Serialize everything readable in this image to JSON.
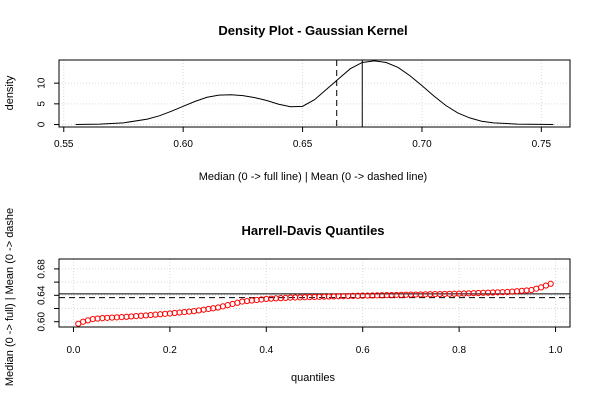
{
  "chart_data": [
    {
      "type": "line",
      "title": "Density Plot - Gaussian Kernel",
      "xlabel": "Median (0 -> full line) | Mean (0 -> dashed line)",
      "ylabel": "density",
      "xlim": [
        0.548,
        0.762
      ],
      "ylim": [
        -0.6,
        15.6
      ],
      "x_ticks": [
        0.55,
        0.6,
        0.65,
        0.7,
        0.75
      ],
      "x_tick_labels": [
        "0.55",
        "0.60",
        "0.65",
        "0.70",
        "0.75"
      ],
      "y_ticks": [
        0,
        5,
        10
      ],
      "y_tick_labels": [
        "0",
        "5",
        "10"
      ],
      "grid": true,
      "series": [
        {
          "x": [
            0.555,
            0.565,
            0.575,
            0.585,
            0.59,
            0.595,
            0.6,
            0.605,
            0.61,
            0.615,
            0.62,
            0.625,
            0.63,
            0.635,
            0.64,
            0.645,
            0.65,
            0.655,
            0.66,
            0.665,
            0.67,
            0.675,
            0.68,
            0.685,
            0.69,
            0.695,
            0.7,
            0.705,
            0.71,
            0.715,
            0.72,
            0.725,
            0.73,
            0.74,
            0.755
          ],
          "y": [
            0.0,
            0.1,
            0.4,
            1.3,
            2.1,
            3.2,
            4.4,
            5.6,
            6.6,
            7.1,
            7.2,
            7.0,
            6.5,
            5.8,
            4.9,
            4.3,
            4.4,
            6.0,
            8.5,
            11.0,
            13.5,
            15.0,
            15.4,
            15.0,
            13.8,
            11.8,
            9.4,
            6.9,
            4.6,
            2.8,
            1.6,
            0.8,
            0.4,
            0.1,
            0.0
          ]
        }
      ],
      "vlines": [
        {
          "label": "median",
          "x": 0.675,
          "style": "solid"
        },
        {
          "label": "mean",
          "x": 0.6643,
          "style": "dashed"
        }
      ]
    },
    {
      "type": "scatter",
      "title": "Harrell-Davis Quantiles",
      "xlabel": "quantiles",
      "ylabel": "Median (0 -> full) | Mean (0 -> dashe",
      "xlim": [
        -0.03,
        1.03
      ],
      "ylim": [
        0.592,
        0.695
      ],
      "x_ticks": [
        0.0,
        0.2,
        0.4,
        0.6,
        0.8,
        1.0
      ],
      "x_tick_labels": [
        "0.0",
        "0.2",
        "0.4",
        "0.6",
        "0.8",
        "1.0"
      ],
      "y_ticks": [
        0.6,
        0.62,
        0.64,
        0.66,
        0.68
      ],
      "y_tick_labels": [
        "0.60",
        "",
        "0.64",
        "",
        "0.68"
      ],
      "grid": true,
      "marker_color": "#ff0000",
      "points": {
        "x_start": 0.01,
        "x_step": 0.01,
        "count": 99,
        "knots_x": [
          0.01,
          0.02,
          0.04,
          0.06,
          0.1,
          0.15,
          0.2,
          0.25,
          0.3,
          0.35,
          0.4,
          0.45,
          0.5,
          0.6,
          0.7,
          0.8,
          0.9,
          0.95,
          0.97,
          0.99
        ],
        "knots_y": [
          0.597,
          0.6,
          0.604,
          0.6055,
          0.607,
          0.6095,
          0.6125,
          0.616,
          0.6215,
          0.6305,
          0.6345,
          0.6365,
          0.6375,
          0.6395,
          0.641,
          0.6425,
          0.645,
          0.648,
          0.652,
          0.6575
        ]
      },
      "hlines": [
        {
          "label": "median",
          "y": 0.6422,
          "style": "solid"
        },
        {
          "label": "mean",
          "y": 0.6365,
          "style": "dashed"
        }
      ]
    }
  ]
}
